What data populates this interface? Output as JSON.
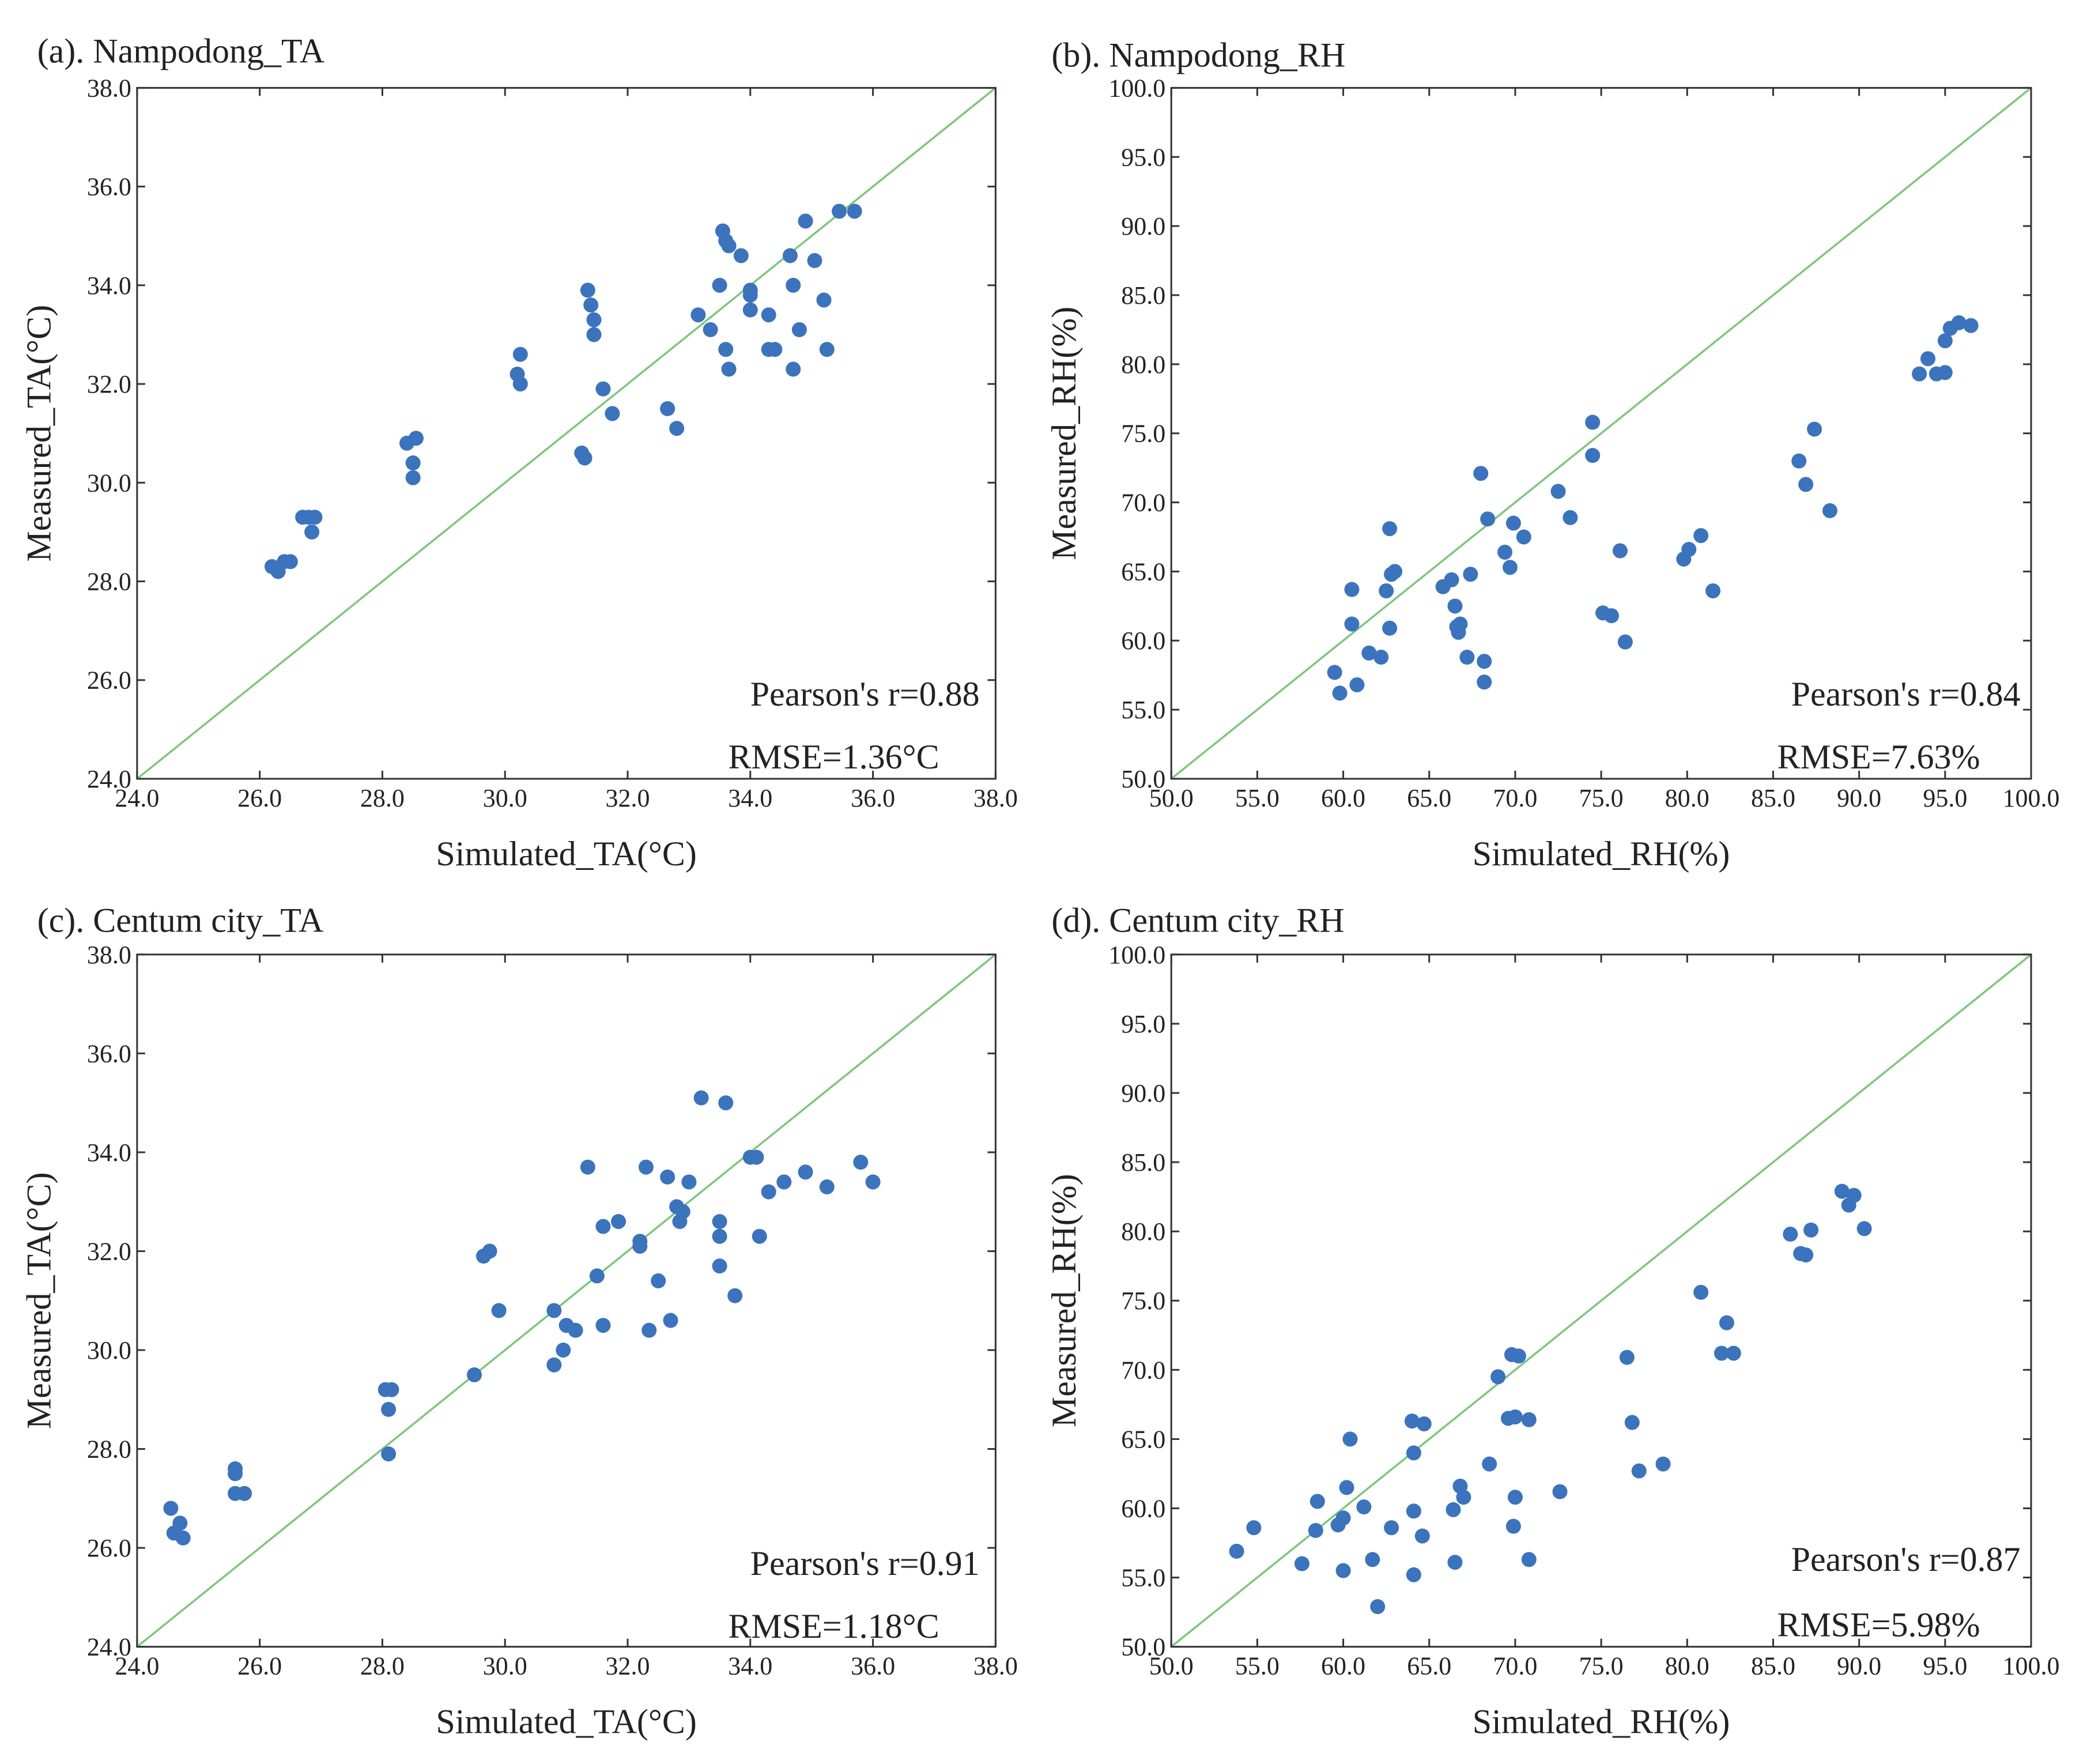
{
  "chart_data": [
    {
      "type": "scatter",
      "title": "(a). Nampodong_TA",
      "xlabel": "Simulated_TA(°C)",
      "ylabel": "Measured_TA(°C)",
      "xlim": [
        24,
        38
      ],
      "ylim": [
        24,
        38
      ],
      "ticks": [
        24,
        26,
        28,
        30,
        32,
        34,
        36,
        38
      ],
      "tick_labels": [
        "24.0",
        "26.0",
        "28.0",
        "30.0",
        "32.0",
        "34.0",
        "36.0",
        "38.0"
      ],
      "diagonal": "1:1 line",
      "stats": [
        "Pearson's r=0.88",
        "RMSE=1.36°C"
      ],
      "points": [
        [
          26.2,
          28.3
        ],
        [
          26.3,
          28.2
        ],
        [
          26.4,
          28.4
        ],
        [
          26.5,
          28.4
        ],
        [
          26.7,
          29.3
        ],
        [
          26.8,
          29.3
        ],
        [
          26.9,
          29.3
        ],
        [
          26.85,
          29.0
        ],
        [
          28.4,
          30.8
        ],
        [
          28.55,
          30.9
        ],
        [
          28.5,
          30.4
        ],
        [
          28.5,
          30.1
        ],
        [
          30.2,
          32.2
        ],
        [
          30.25,
          32.6
        ],
        [
          30.25,
          32.0
        ],
        [
          31.25,
          30.6
        ],
        [
          31.3,
          30.5
        ],
        [
          31.35,
          33.9
        ],
        [
          31.4,
          33.6
        ],
        [
          31.45,
          33.0
        ],
        [
          31.45,
          33.3
        ],
        [
          31.6,
          31.9
        ],
        [
          31.75,
          31.4
        ],
        [
          32.65,
          31.5
        ],
        [
          32.8,
          31.1
        ],
        [
          33.15,
          33.4
        ],
        [
          33.35,
          33.1
        ],
        [
          33.5,
          34.0
        ],
        [
          33.55,
          35.1
        ],
        [
          33.6,
          34.9
        ],
        [
          33.6,
          32.7
        ],
        [
          33.65,
          32.3
        ],
        [
          33.65,
          34.8
        ],
        [
          33.85,
          34.6
        ],
        [
          34.0,
          33.9
        ],
        [
          34.0,
          33.8
        ],
        [
          34.0,
          33.5
        ],
        [
          34.3,
          33.4
        ],
        [
          34.3,
          32.7
        ],
        [
          34.4,
          32.7
        ],
        [
          34.65,
          34.6
        ],
        [
          34.7,
          34.0
        ],
        [
          34.7,
          32.3
        ],
        [
          34.8,
          33.1
        ],
        [
          34.9,
          35.3
        ],
        [
          35.05,
          34.5
        ],
        [
          35.2,
          33.7
        ],
        [
          35.25,
          32.7
        ],
        [
          35.45,
          35.5
        ],
        [
          35.7,
          35.5
        ]
      ]
    },
    {
      "type": "scatter",
      "title": "(b). Nampodong_RH",
      "xlabel": "Simulated_RH(%)",
      "ylabel": "Measured_RH(%)",
      "xlim": [
        50,
        100
      ],
      "ylim": [
        50,
        100
      ],
      "ticks": [
        50,
        55,
        60,
        65,
        70,
        75,
        80,
        85,
        90,
        95,
        100
      ],
      "tick_labels": [
        "50.0",
        "55.0",
        "60.0",
        "65.0",
        "70.0",
        "75.0",
        "80.0",
        "85.0",
        "90.0",
        "95.0",
        "100.0"
      ],
      "diagonal": "1:1 line",
      "stats": [
        "Pearson's r=0.84",
        "RMSE=7.63%"
      ],
      "points": [
        [
          59.5,
          57.7
        ],
        [
          59.8,
          56.2
        ],
        [
          60.5,
          63.7
        ],
        [
          60.5,
          61.2
        ],
        [
          60.8,
          56.8
        ],
        [
          61.5,
          59.1
        ],
        [
          62.2,
          58.8
        ],
        [
          62.5,
          63.6
        ],
        [
          62.7,
          68.1
        ],
        [
          62.7,
          60.9
        ],
        [
          62.8,
          64.8
        ],
        [
          63.0,
          65.0
        ],
        [
          65.8,
          63.9
        ],
        [
          66.3,
          64.4
        ],
        [
          66.5,
          62.5
        ],
        [
          66.6,
          61.0
        ],
        [
          66.7,
          60.6
        ],
        [
          66.8,
          61.2
        ],
        [
          67.2,
          58.8
        ],
        [
          67.4,
          64.8
        ],
        [
          68.0,
          72.1
        ],
        [
          68.2,
          58.5
        ],
        [
          68.2,
          57.0
        ],
        [
          68.4,
          68.8
        ],
        [
          69.4,
          66.4
        ],
        [
          69.7,
          65.3
        ],
        [
          69.9,
          68.5
        ],
        [
          70.5,
          67.5
        ],
        [
          72.5,
          70.8
        ],
        [
          73.2,
          68.9
        ],
        [
          74.5,
          75.8
        ],
        [
          74.5,
          73.4
        ],
        [
          75.1,
          62.0
        ],
        [
          75.6,
          61.8
        ],
        [
          76.1,
          66.5
        ],
        [
          76.4,
          59.9
        ],
        [
          79.8,
          65.9
        ],
        [
          80.1,
          66.6
        ],
        [
          80.8,
          67.6
        ],
        [
          81.5,
          63.6
        ],
        [
          86.5,
          73.0
        ],
        [
          86.9,
          71.3
        ],
        [
          87.4,
          75.3
        ],
        [
          88.3,
          69.4
        ],
        [
          93.5,
          79.3
        ],
        [
          94.0,
          80.4
        ],
        [
          94.5,
          79.3
        ],
        [
          95.0,
          81.7
        ],
        [
          95.0,
          79.4
        ],
        [
          95.3,
          82.6
        ],
        [
          95.8,
          83.0
        ],
        [
          96.5,
          82.8
        ]
      ]
    },
    {
      "type": "scatter",
      "title": "(c). Centum city_TA",
      "xlabel": "Simulated_TA(°C)",
      "ylabel": "Measured_TA(°C)",
      "xlim": [
        24,
        38
      ],
      "ylim": [
        24,
        38
      ],
      "ticks": [
        24,
        26,
        28,
        30,
        32,
        34,
        36,
        38
      ],
      "tick_labels": [
        "24.0",
        "26.0",
        "28.0",
        "30.0",
        "32.0",
        "34.0",
        "36.0",
        "38.0"
      ],
      "diagonal": "1:1 line",
      "stats": [
        "Pearson's r=0.91",
        "RMSE=1.18°C"
      ],
      "points": [
        [
          24.55,
          26.8
        ],
        [
          24.6,
          26.3
        ],
        [
          24.7,
          26.5
        ],
        [
          24.75,
          26.2
        ],
        [
          25.6,
          27.6
        ],
        [
          25.6,
          27.5
        ],
        [
          25.6,
          27.1
        ],
        [
          25.75,
          27.1
        ],
        [
          28.05,
          29.2
        ],
        [
          28.1,
          28.8
        ],
        [
          28.15,
          29.2
        ],
        [
          28.1,
          27.9
        ],
        [
          29.5,
          29.5
        ],
        [
          29.65,
          31.9
        ],
        [
          29.75,
          32.0
        ],
        [
          29.9,
          30.8
        ],
        [
          30.8,
          29.7
        ],
        [
          30.8,
          30.8
        ],
        [
          30.95,
          30.0
        ],
        [
          31.0,
          30.5
        ],
        [
          31.15,
          30.4
        ],
        [
          31.35,
          33.7
        ],
        [
          31.5,
          31.5
        ],
        [
          31.6,
          32.5
        ],
        [
          31.6,
          30.5
        ],
        [
          31.85,
          32.6
        ],
        [
          32.2,
          32.2
        ],
        [
          32.2,
          32.1
        ],
        [
          32.3,
          33.7
        ],
        [
          32.35,
          30.4
        ],
        [
          32.5,
          31.4
        ],
        [
          32.65,
          33.5
        ],
        [
          32.7,
          30.6
        ],
        [
          32.8,
          32.9
        ],
        [
          32.85,
          32.6
        ],
        [
          32.9,
          32.8
        ],
        [
          33.0,
          33.4
        ],
        [
          33.2,
          35.1
        ],
        [
          33.5,
          32.6
        ],
        [
          33.5,
          32.3
        ],
        [
          33.5,
          31.7
        ],
        [
          33.6,
          35.0
        ],
        [
          33.75,
          31.1
        ],
        [
          34.0,
          33.9
        ],
        [
          34.1,
          33.9
        ],
        [
          34.15,
          32.3
        ],
        [
          34.3,
          33.2
        ],
        [
          34.55,
          33.4
        ],
        [
          34.9,
          33.6
        ],
        [
          35.25,
          33.3
        ],
        [
          35.8,
          33.8
        ],
        [
          36.0,
          33.4
        ]
      ]
    },
    {
      "type": "scatter",
      "title": "(d). Centum city_RH",
      "xlabel": "Simulated_RH(%)",
      "ylabel": "Measured_RH(%)",
      "xlim": [
        50,
        100
      ],
      "ylim": [
        50,
        100
      ],
      "ticks": [
        50,
        55,
        60,
        65,
        70,
        75,
        80,
        85,
        90,
        95,
        100
      ],
      "tick_labels": [
        "50.0",
        "55.0",
        "60.0",
        "65.0",
        "70.0",
        "75.0",
        "80.0",
        "85.0",
        "90.0",
        "95.0",
        "100.0"
      ],
      "diagonal": "1:1 line",
      "stats": [
        "Pearson's r=0.87",
        "RMSE=5.98%"
      ],
      "points": [
        [
          53.8,
          56.9
        ],
        [
          54.8,
          58.6
        ],
        [
          57.6,
          56.0
        ],
        [
          58.4,
          58.4
        ],
        [
          58.5,
          60.5
        ],
        [
          59.7,
          58.8
        ],
        [
          60.0,
          59.3
        ],
        [
          60.0,
          55.5
        ],
        [
          60.2,
          61.5
        ],
        [
          60.4,
          65.0
        ],
        [
          61.2,
          60.1
        ],
        [
          61.7,
          56.3
        ],
        [
          62.0,
          52.9
        ],
        [
          62.8,
          58.6
        ],
        [
          64.0,
          66.3
        ],
        [
          64.1,
          59.8
        ],
        [
          64.1,
          64.0
        ],
        [
          64.1,
          55.2
        ],
        [
          64.6,
          58.0
        ],
        [
          64.7,
          66.1
        ],
        [
          66.4,
          59.9
        ],
        [
          66.5,
          56.1
        ],
        [
          66.8,
          61.6
        ],
        [
          67.0,
          60.8
        ],
        [
          68.5,
          63.2
        ],
        [
          69.0,
          69.5
        ],
        [
          69.6,
          66.5
        ],
        [
          69.8,
          71.1
        ],
        [
          69.9,
          58.7
        ],
        [
          70.0,
          60.8
        ],
        [
          70.0,
          66.6
        ],
        [
          70.2,
          71.0
        ],
        [
          70.8,
          66.4
        ],
        [
          70.8,
          56.3
        ],
        [
          72.6,
          61.2
        ],
        [
          76.5,
          70.9
        ],
        [
          76.8,
          66.2
        ],
        [
          77.2,
          62.7
        ],
        [
          78.6,
          63.2
        ],
        [
          80.8,
          75.6
        ],
        [
          82.0,
          71.2
        ],
        [
          82.3,
          73.4
        ],
        [
          82.7,
          71.2
        ],
        [
          86.0,
          79.8
        ],
        [
          86.6,
          78.4
        ],
        [
          86.9,
          78.3
        ],
        [
          87.2,
          80.1
        ],
        [
          89.0,
          82.9
        ],
        [
          89.4,
          81.9
        ],
        [
          89.7,
          82.6
        ],
        [
          90.3,
          80.2
        ]
      ]
    }
  ]
}
